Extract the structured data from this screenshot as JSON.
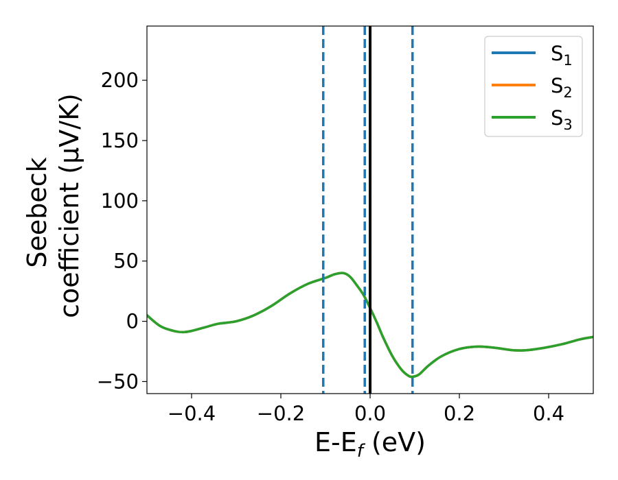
{
  "chart_data": {
    "type": "line",
    "xlabel": {
      "main": "E-E",
      "sub": "f",
      "suffix": " (eV)"
    },
    "ylabel": {
      "line1": "Seebeck",
      "line2": "coefficient  (μV/K)"
    },
    "xlim": [
      -0.5,
      0.5
    ],
    "ylim": [
      -60,
      245
    ],
    "xticks": [
      -0.4,
      -0.2,
      0.0,
      0.2,
      0.4
    ],
    "xtick_labels": [
      "−0.4",
      "−0.2",
      "0.0",
      "0.2",
      "0.4"
    ],
    "yticks": [
      -50,
      0,
      50,
      100,
      150,
      200
    ],
    "ytick_labels": [
      "−50",
      "0",
      "50",
      "100",
      "150",
      "200"
    ],
    "legend_position": "top-right",
    "series": [
      {
        "name": "S",
        "sub": "1",
        "color": "#1f77b4"
      },
      {
        "name": "S",
        "sub": "2",
        "color": "#ff7f0e"
      },
      {
        "name": "S",
        "sub": "3",
        "color": "#2ca02c"
      }
    ],
    "curve": {
      "x": [
        -0.5,
        -0.47,
        -0.44,
        -0.42,
        -0.4,
        -0.37,
        -0.34,
        -0.3,
        -0.26,
        -0.22,
        -0.18,
        -0.14,
        -0.1,
        -0.08,
        -0.06,
        -0.045,
        -0.03,
        -0.015,
        0.0,
        0.015,
        0.03,
        0.05,
        0.07,
        0.085,
        0.095,
        0.11,
        0.13,
        0.16,
        0.2,
        0.24,
        0.28,
        0.32,
        0.35,
        0.39,
        0.43,
        0.47,
        0.5
      ],
      "y": [
        5,
        -4,
        -8,
        -9,
        -8,
        -5,
        -2,
        0,
        5,
        13,
        23,
        31,
        36,
        39,
        40,
        37,
        30,
        22,
        11,
        -1,
        -14,
        -29,
        -40,
        -45,
        -46,
        -44,
        -37,
        -29,
        -23,
        -21,
        -22,
        -24,
        -24,
        -22,
        -19,
        -15,
        -13
      ]
    },
    "vlines": [
      {
        "x": -0.105,
        "style": "dashed",
        "color": "#1f77b4"
      },
      {
        "x": -0.012,
        "style": "dashed",
        "color": "#1f77b4"
      },
      {
        "x": 0.095,
        "style": "dashed",
        "color": "#1f77b4"
      },
      {
        "x": 0.0,
        "style": "solid",
        "color": "#000000"
      }
    ]
  }
}
